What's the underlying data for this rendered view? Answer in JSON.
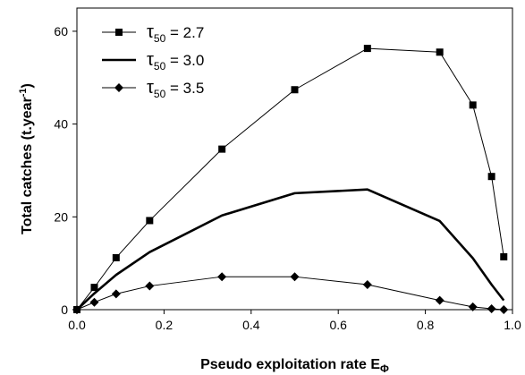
{
  "chart_data": {
    "type": "line",
    "title": "",
    "xlabel": "Pseudo exploitation rate E",
    "xlabel_subscript": "Φ",
    "ylabel": "Total catches (t.year",
    "ylabel_superscript": "-1",
    "ylabel_suffix": ")",
    "xlim": [
      0,
      1
    ],
    "ylim": [
      0,
      65
    ],
    "x_ticks": [
      0.0,
      0.2,
      0.4,
      0.6,
      0.8,
      1.0
    ],
    "x_tick_labels": [
      "0.0",
      "0.2",
      "0.4",
      "0.6",
      "0.8",
      "1.0"
    ],
    "y_ticks": [
      0,
      20,
      40,
      60
    ],
    "y_tick_labels": [
      "0",
      "20",
      "40",
      "60"
    ],
    "grid": false,
    "legend_position": "top-left",
    "legend_symbol": "τ",
    "legend_subscript": "50",
    "series": [
      {
        "name": "τ50 = 2.7",
        "legend_value": " = 2.7",
        "marker": "square",
        "line_width": 1,
        "color": "#000000",
        "x": [
          0.0,
          0.04,
          0.09,
          0.167,
          0.333,
          0.5,
          0.667,
          0.833,
          0.909,
          0.952,
          0.98
        ],
        "y": [
          0,
          4.8,
          11.2,
          19.2,
          34.6,
          47.4,
          56.3,
          55.5,
          44.1,
          28.7,
          11.4
        ]
      },
      {
        "name": "τ50 = 3.0",
        "legend_value": " = 3.0",
        "marker": "none",
        "line_width": 2.6,
        "color": "#000000",
        "x": [
          0.0,
          0.04,
          0.09,
          0.167,
          0.333,
          0.5,
          0.667,
          0.833,
          0.909,
          0.952,
          0.98
        ],
        "y": [
          0,
          3.5,
          7.5,
          12.4,
          20.3,
          25.1,
          25.9,
          19.1,
          11.1,
          5.4,
          2.0
        ]
      },
      {
        "name": "τ50 = 3.5",
        "legend_value": " = 3.5",
        "marker": "diamond",
        "line_width": 1,
        "color": "#000000",
        "x": [
          0.0,
          0.04,
          0.09,
          0.167,
          0.333,
          0.5,
          0.667,
          0.833,
          0.909,
          0.952,
          0.98
        ],
        "y": [
          0,
          1.6,
          3.4,
          5.1,
          7.1,
          7.1,
          5.4,
          2.0,
          0.6,
          0.2,
          0.0
        ]
      }
    ]
  }
}
